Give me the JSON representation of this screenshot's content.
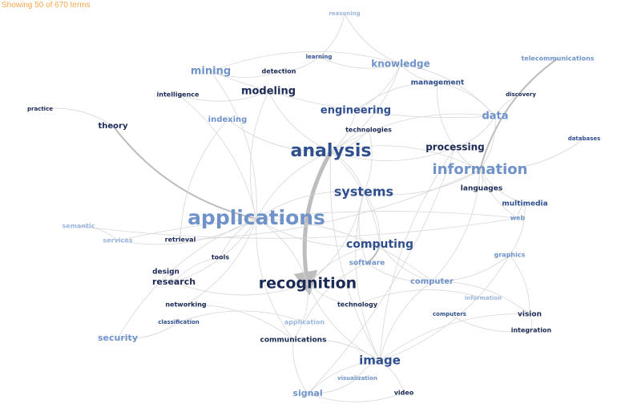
{
  "status_text": "Showing 50 of 670 terms",
  "colors": {
    "status": "#f4a64d",
    "dark": "#1b2a55",
    "mid": "#2f4f8f",
    "light": "#6f93c8",
    "pale": "#9ab6dc",
    "edge": "#d7d7d7",
    "edge_strong": "#bdbdbd"
  },
  "terms": [
    {
      "id": "reasoning",
      "label": "reasoning"
    },
    {
      "id": "telecommunications",
      "label": "telecommunications"
    },
    {
      "id": "learning",
      "label": "learning"
    },
    {
      "id": "knowledge",
      "label": "knowledge"
    },
    {
      "id": "mining",
      "label": "mining"
    },
    {
      "id": "detection",
      "label": "detection"
    },
    {
      "id": "management",
      "label": "management"
    },
    {
      "id": "modeling",
      "label": "modeling"
    },
    {
      "id": "intelligence",
      "label": "intelligence"
    },
    {
      "id": "discovery",
      "label": "discovery"
    },
    {
      "id": "practice",
      "label": "practice"
    },
    {
      "id": "engineering",
      "label": "engineering"
    },
    {
      "id": "indexing",
      "label": "indexing"
    },
    {
      "id": "data",
      "label": "data"
    },
    {
      "id": "theory",
      "label": "theory"
    },
    {
      "id": "technologies",
      "label": "technologies"
    },
    {
      "id": "analysis",
      "label": "analysis"
    },
    {
      "id": "processing",
      "label": "processing"
    },
    {
      "id": "databases",
      "label": "databases"
    },
    {
      "id": "information",
      "label": "information"
    },
    {
      "id": "languages",
      "label": "languages"
    },
    {
      "id": "systems",
      "label": "systems"
    },
    {
      "id": "multimedia",
      "label": "multimedia"
    },
    {
      "id": "semantic",
      "label": "semantic"
    },
    {
      "id": "applications",
      "label": "applications"
    },
    {
      "id": "web",
      "label": "web"
    },
    {
      "id": "services",
      "label": "services"
    },
    {
      "id": "retrieval",
      "label": "retrieval"
    },
    {
      "id": "computing",
      "label": "computing"
    },
    {
      "id": "tools",
      "label": "tools"
    },
    {
      "id": "graphics",
      "label": "graphics"
    },
    {
      "id": "software",
      "label": "software"
    },
    {
      "id": "design",
      "label": "design"
    },
    {
      "id": "research",
      "label": "research"
    },
    {
      "id": "recognition",
      "label": "recognition"
    },
    {
      "id": "computer",
      "label": "computer"
    },
    {
      "id": "information2",
      "label": "information"
    },
    {
      "id": "networking",
      "label": "networking"
    },
    {
      "id": "technology",
      "label": "technology"
    },
    {
      "id": "computers",
      "label": "computers"
    },
    {
      "id": "vision",
      "label": "vision"
    },
    {
      "id": "classification",
      "label": "classification"
    },
    {
      "id": "application",
      "label": "application"
    },
    {
      "id": "integration",
      "label": "integration"
    },
    {
      "id": "security",
      "label": "security"
    },
    {
      "id": "communications",
      "label": "communications"
    },
    {
      "id": "image",
      "label": "image"
    },
    {
      "id": "visualization",
      "label": "visualization"
    },
    {
      "id": "signal",
      "label": "signal"
    },
    {
      "id": "video",
      "label": "video"
    }
  ],
  "edges": [
    [
      "analysis",
      "recognition"
    ],
    [
      "analysis",
      "systems"
    ],
    [
      "analysis",
      "processing"
    ],
    [
      "analysis",
      "information"
    ],
    [
      "analysis",
      "engineering"
    ],
    [
      "analysis",
      "data"
    ],
    [
      "analysis",
      "applications"
    ],
    [
      "analysis",
      "modeling"
    ],
    [
      "analysis",
      "image"
    ],
    [
      "analysis",
      "computing"
    ],
    [
      "analysis",
      "knowledge"
    ],
    [
      "analysis",
      "indexing"
    ],
    [
      "analysis",
      "technologies"
    ],
    [
      "applications",
      "theory"
    ],
    [
      "applications",
      "mining"
    ],
    [
      "applications",
      "research"
    ],
    [
      "applications",
      "tools"
    ],
    [
      "applications",
      "recognition"
    ],
    [
      "applications",
      "computing"
    ],
    [
      "applications",
      "services"
    ],
    [
      "applications",
      "security"
    ],
    [
      "applications",
      "networking"
    ],
    [
      "applications",
      "intelligence"
    ],
    [
      "applications",
      "modeling"
    ],
    [
      "applications",
      "communications"
    ],
    [
      "applications",
      "systems"
    ],
    [
      "systems",
      "information"
    ],
    [
      "systems",
      "computing"
    ],
    [
      "systems",
      "image"
    ],
    [
      "systems",
      "recognition"
    ],
    [
      "systems",
      "software"
    ],
    [
      "information",
      "processing"
    ],
    [
      "information",
      "data"
    ],
    [
      "information",
      "telecommunications"
    ],
    [
      "information",
      "databases"
    ],
    [
      "information",
      "languages"
    ],
    [
      "information",
      "multimedia"
    ],
    [
      "information",
      "computer"
    ],
    [
      "processing",
      "image"
    ],
    [
      "processing",
      "signal"
    ],
    [
      "processing",
      "data"
    ],
    [
      "recognition",
      "communications"
    ],
    [
      "recognition",
      "image"
    ],
    [
      "recognition",
      "computing"
    ],
    [
      "recognition",
      "technology"
    ],
    [
      "recognition",
      "research"
    ],
    [
      "image",
      "signal"
    ],
    [
      "image",
      "video"
    ],
    [
      "image",
      "visualization"
    ],
    [
      "image",
      "computer"
    ],
    [
      "image",
      "graphics"
    ],
    [
      "image",
      "vision"
    ],
    [
      "image",
      "communications"
    ],
    [
      "computer",
      "vision"
    ],
    [
      "computer",
      "graphics"
    ],
    [
      "computer",
      "software"
    ],
    [
      "computer",
      "applications"
    ],
    [
      "computing",
      "software"
    ],
    [
      "computing",
      "computer"
    ],
    [
      "data",
      "mining"
    ],
    [
      "data",
      "management"
    ],
    [
      "data",
      "discovery"
    ],
    [
      "data",
      "knowledge"
    ],
    [
      "knowledge",
      "learning"
    ],
    [
      "knowledge",
      "mining"
    ],
    [
      "knowledge",
      "reasoning"
    ],
    [
      "knowledge",
      "management"
    ],
    [
      "learning",
      "detection"
    ],
    [
      "mining",
      "detection"
    ],
    [
      "modeling",
      "intelligence"
    ],
    [
      "engineering",
      "knowledge"
    ],
    [
      "engineering",
      "management"
    ],
    [
      "theory",
      "practice"
    ],
    [
      "semantic",
      "services"
    ],
    [
      "semantic",
      "web"
    ],
    [
      "web",
      "multimedia"
    ],
    [
      "web",
      "services"
    ],
    [
      "web",
      "information"
    ],
    [
      "research",
      "design"
    ],
    [
      "research",
      "tools"
    ],
    [
      "retrieval",
      "information"
    ],
    [
      "networking",
      "communications"
    ],
    [
      "security",
      "classification"
    ],
    [
      "classification",
      "application"
    ],
    [
      "communications",
      "signal"
    ],
    [
      "technology",
      "information2"
    ],
    [
      "computers",
      "integration"
    ],
    [
      "vision",
      "integration"
    ],
    [
      "vision",
      "graphics"
    ],
    [
      "multimedia",
      "graphics"
    ],
    [
      "management",
      "processing"
    ],
    [
      "reasoning",
      "learning"
    ],
    [
      "indexing",
      "retrieval"
    ],
    [
      "technologies",
      "systems"
    ],
    [
      "software",
      "application"
    ],
    [
      "visualization",
      "signal"
    ],
    [
      "signal",
      "video"
    ]
  ],
  "emphasized_edges": [
    [
      "analysis",
      "recognition"
    ],
    [
      "applications",
      "theory"
    ],
    [
      "information",
      "telecommunications"
    ],
    [
      "computing",
      "software"
    ]
  ]
}
